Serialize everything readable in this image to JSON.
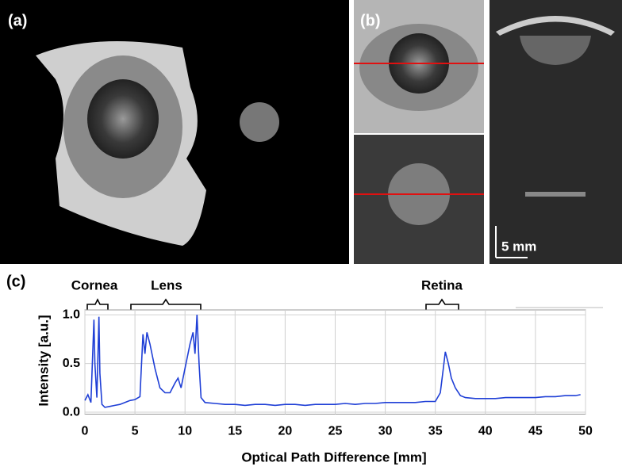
{
  "figure": {
    "labels": [
      "(a)",
      "(b)",
      "(c)"
    ],
    "scale_bar": "5 mm"
  },
  "chart_data": {
    "type": "line",
    "x_label": "Optical Path Difference [mm]",
    "y_label": "Intensity [a.u.]",
    "annotations": [
      "Cornea",
      "Lens",
      "Retina"
    ],
    "x": [
      0,
      0.3,
      0.6,
      0.9,
      1.0,
      1.2,
      1.4,
      1.5,
      1.7,
      2,
      2.5,
      3,
      3.5,
      4,
      4.5,
      5,
      5.5,
      5.8,
      6,
      6.2,
      6.5,
      7,
      7.5,
      8,
      8.5,
      9,
      9.3,
      9.6,
      10,
      10.5,
      10.8,
      11,
      11.2,
      11.4,
      11.6,
      12,
      13,
      14,
      15,
      16,
      17,
      18,
      19,
      20,
      21,
      22,
      23,
      24,
      25,
      26,
      27,
      28,
      29,
      30,
      31,
      32,
      33,
      34,
      35,
      35.5,
      35.8,
      36,
      36.3,
      36.6,
      37,
      37.5,
      38,
      39,
      40,
      41,
      42,
      43,
      44,
      45,
      46,
      47,
      48,
      49,
      49.5
    ],
    "values": [
      0.12,
      0.18,
      0.1,
      0.95,
      0.5,
      0.15,
      0.98,
      0.4,
      0.08,
      0.05,
      0.06,
      0.07,
      0.08,
      0.1,
      0.12,
      0.13,
      0.16,
      0.8,
      0.6,
      0.82,
      0.7,
      0.45,
      0.25,
      0.2,
      0.2,
      0.3,
      0.35,
      0.25,
      0.45,
      0.7,
      0.82,
      0.6,
      1.0,
      0.5,
      0.15,
      0.1,
      0.09,
      0.08,
      0.08,
      0.07,
      0.08,
      0.08,
      0.07,
      0.08,
      0.08,
      0.07,
      0.08,
      0.08,
      0.08,
      0.09,
      0.08,
      0.09,
      0.09,
      0.1,
      0.1,
      0.1,
      0.1,
      0.11,
      0.11,
      0.2,
      0.45,
      0.62,
      0.5,
      0.35,
      0.25,
      0.17,
      0.15,
      0.14,
      0.14,
      0.14,
      0.15,
      0.15,
      0.15,
      0.15,
      0.16,
      0.16,
      0.17,
      0.17,
      0.18
    ],
    "color": "#1f3fd6",
    "xlim": [
      0,
      50
    ],
    "xticks": [
      0,
      5,
      10,
      15,
      20,
      25,
      30,
      35,
      40,
      45,
      50
    ],
    "ylim": [
      -0.02,
      1.05
    ],
    "yticks": [
      {
        "value": 0,
        "label": "0.0"
      },
      0.5,
      {
        "value": 1,
        "label": "1.0"
      }
    ],
    "grid": true
  }
}
